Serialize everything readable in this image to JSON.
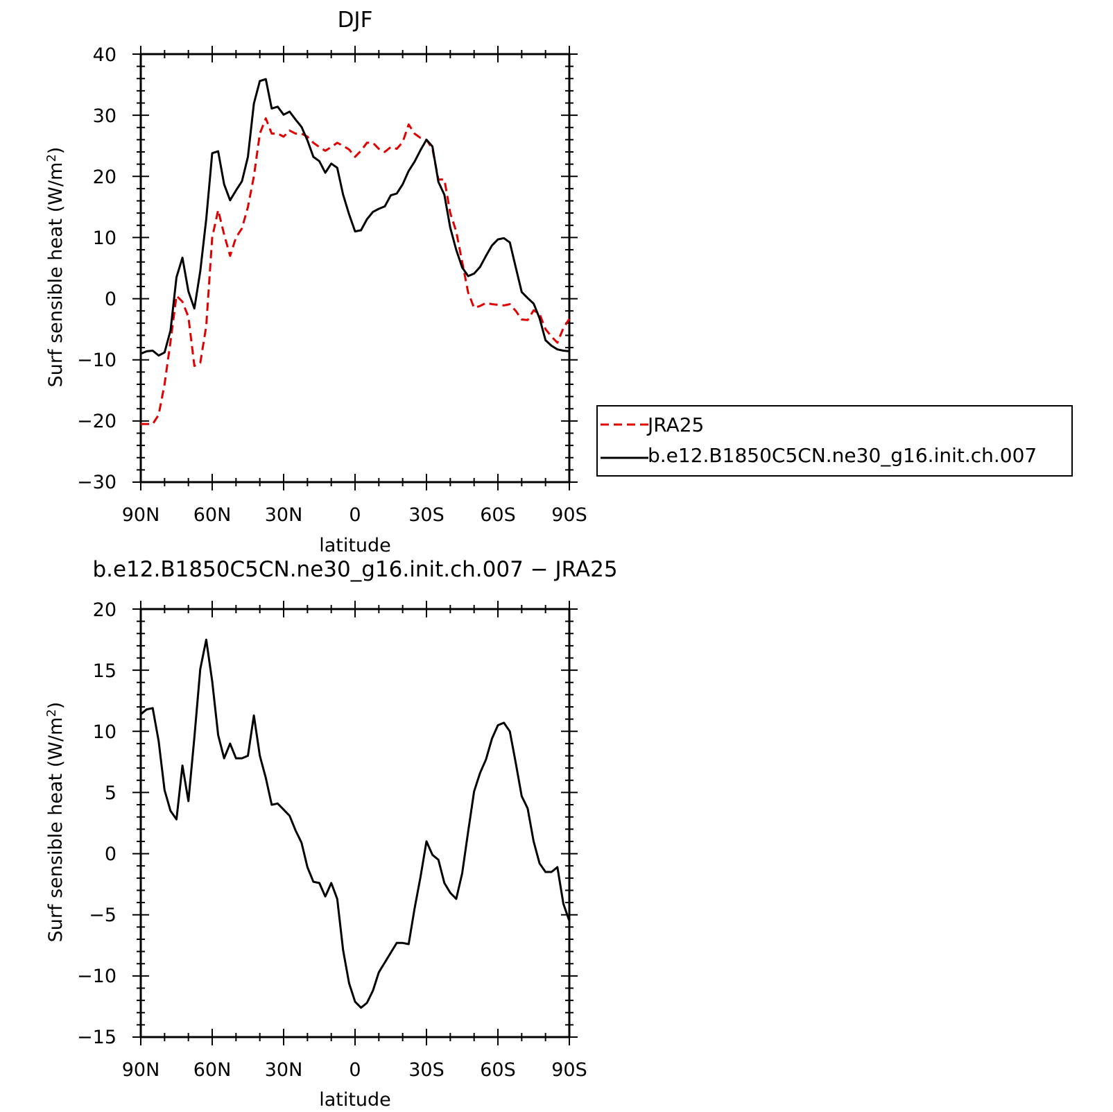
{
  "colors": {
    "model": "#000000",
    "obs": "#e00000",
    "background": "#ffffff"
  },
  "chart_data": [
    {
      "type": "line",
      "title": "DJF",
      "xlabel": "latitude",
      "ylabel": "Surf sensible heat (W/m",
      "ylabel_sup": "2",
      "ylabel_close": ")",
      "xlim": [
        90,
        -90
      ],
      "ylim": [
        -30,
        40
      ],
      "xticks": [
        90,
        60,
        30,
        0,
        -30,
        -60,
        -90
      ],
      "xticklabels": [
        "90N",
        "60N",
        "30N",
        "0",
        "30S",
        "60S",
        "90S"
      ],
      "yticks": [
        -30,
        -20,
        -10,
        0,
        10,
        20,
        30,
        40
      ],
      "yticklabels": [
        "−30",
        "−20",
        "−10",
        "0",
        "10",
        "20",
        "30",
        "40"
      ],
      "legend": {
        "placement": "right, outside plot",
        "entries": [
          "JRA25",
          "b.e12.B1850C5CN.ne30_g16.init.ch.007"
        ]
      },
      "grid": false,
      "series": [
        {
          "name": "JRA25",
          "style": "dashed",
          "color": "red",
          "x": [
            90,
            87.5,
            85,
            82.5,
            80,
            77.5,
            75,
            72.5,
            70,
            67.5,
            65,
            62.5,
            60,
            57.5,
            55,
            52.5,
            50,
            47.5,
            45,
            42.5,
            40,
            37.5,
            35,
            32.5,
            30,
            27.5,
            25,
            22.5,
            20,
            17.5,
            15,
            12.5,
            10,
            7.5,
            5,
            2.5,
            0,
            -2.5,
            -5,
            -7.5,
            -10,
            -12.5,
            -15,
            -17.5,
            -20,
            -22.5,
            -25,
            -27.5,
            -30,
            -32.5,
            -35,
            -37.5,
            -40,
            -42.5,
            -45,
            -47.5,
            -50,
            -52.5,
            -55,
            -57.5,
            -60,
            -62.5,
            -65,
            -67.5,
            -70,
            -72.5,
            -75,
            -77.5,
            -80,
            -82.5,
            -85,
            -87.5,
            -90
          ],
          "y": [
            -20.5,
            -20.5,
            -20.5,
            -19,
            -14,
            -7,
            0.5,
            -0.5,
            -3,
            -11,
            -10.5,
            -4.5,
            10,
            14.5,
            10.5,
            7,
            10,
            11.5,
            15,
            20,
            27,
            29.5,
            27,
            27,
            26.5,
            27.5,
            27,
            27,
            26.5,
            25.5,
            24.8,
            24.2,
            24.8,
            25.5,
            25,
            24.4,
            23.2,
            24.2,
            25.5,
            25.5,
            24.5,
            24,
            24.8,
            24.5,
            25.6,
            28.5,
            27,
            26.3,
            26,
            24.5,
            19.5,
            19.5,
            14,
            11,
            6,
            1,
            -1.5,
            -1.2,
            -0.7,
            -0.9,
            -1.0,
            -1.1,
            -0.9,
            -2.0,
            -3.4,
            -3.5,
            -1.9,
            -2.5,
            -5,
            -6.2,
            -7.2,
            -4.8,
            -3.3
          ]
        },
        {
          "name": "b.e12.B1850C5CN.ne30_g16.init.ch.007",
          "style": "solid",
          "color": "black",
          "x": [
            90,
            87.5,
            85,
            82.5,
            80,
            77.5,
            75,
            72.5,
            70,
            67.5,
            65,
            62.5,
            60,
            57.5,
            55,
            52.5,
            50,
            47.5,
            45,
            42.5,
            40,
            37.5,
            35,
            32.5,
            30,
            27.5,
            25,
            22.5,
            20,
            17.5,
            15,
            12.5,
            10,
            7.5,
            5,
            2.5,
            0,
            -2.5,
            -5,
            -7.5,
            -10,
            -12.5,
            -15,
            -17.5,
            -20,
            -22.5,
            -25,
            -27.5,
            -30,
            -32.5,
            -35,
            -37.5,
            -40,
            -42.5,
            -45,
            -47.5,
            -50,
            -52.5,
            -55,
            -57.5,
            -60,
            -62.5,
            -65,
            -67.5,
            -70,
            -72.5,
            -75,
            -77.5,
            -80,
            -82.5,
            -85,
            -87.5,
            -90
          ],
          "y": [
            -9,
            -8.6,
            -8.5,
            -9.3,
            -8.8,
            -5.2,
            3.5,
            6.7,
            1.2,
            -1.6,
            4.5,
            13,
            23.8,
            24.1,
            18.7,
            16.1,
            17.7,
            19.2,
            23.2,
            31.9,
            35.6,
            35.9,
            31.1,
            31.4,
            30.1,
            30.6,
            29.3,
            28.1,
            25.9,
            23.2,
            22.5,
            20.6,
            22.1,
            21.4,
            17,
            13.8,
            11,
            11.2,
            13,
            14.2,
            14.7,
            15.1,
            16.9,
            17.2,
            18.7,
            20.9,
            22.4,
            24.3,
            26,
            24.9,
            19.1,
            17,
            11.6,
            8,
            5.1,
            3.7,
            4.1,
            5.2,
            7,
            8.7,
            9.7,
            9.9,
            9.2,
            5.1,
            1.1,
            0.1,
            -0.8,
            -3.2,
            -6.8,
            -7.7,
            -8.3,
            -8.5,
            -8.6
          ]
        }
      ]
    },
    {
      "type": "line",
      "title": "b.e12.B1850C5CN.ne30_g16.init.ch.007 − JRA25",
      "xlabel": "latitude",
      "ylabel": "Surf sensible heat (W/m",
      "ylabel_sup": "2",
      "ylabel_close": ")",
      "xlim": [
        90,
        -90
      ],
      "ylim": [
        -15,
        20
      ],
      "xticks": [
        90,
        60,
        30,
        0,
        -30,
        -60,
        -90
      ],
      "xticklabels": [
        "90N",
        "60N",
        "30N",
        "0",
        "30S",
        "60S",
        "90S"
      ],
      "yticks": [
        -15,
        -10,
        -5,
        0,
        5,
        10,
        15,
        20
      ],
      "yticklabels": [
        "−15",
        "−10",
        "−5",
        "0",
        "5",
        "10",
        "15",
        "20"
      ],
      "grid": false,
      "series": [
        {
          "style": "solid",
          "color": "black",
          "x": [
            90,
            87.5,
            85,
            82.5,
            80,
            77.5,
            75,
            72.5,
            70,
            67.5,
            65,
            62.5,
            60,
            57.5,
            55,
            52.5,
            50,
            47.5,
            45,
            42.5,
            40,
            37.5,
            35,
            32.5,
            30,
            27.5,
            25,
            22.5,
            20,
            17.5,
            15,
            12.5,
            10,
            7.5,
            5,
            2.5,
            0,
            -2.5,
            -5,
            -7.5,
            -10,
            -12.5,
            -15,
            -17.5,
            -20,
            -22.5,
            -25,
            -27.5,
            -30,
            -32.5,
            -35,
            -37.5,
            -40,
            -42.5,
            -45,
            -47.5,
            -50,
            -52.5,
            -55,
            -57.5,
            -60,
            -62.5,
            -65,
            -67.5,
            -70,
            -72.5,
            -75,
            -77.5,
            -80,
            -82.5,
            -85,
            -87.5,
            -90
          ],
          "y": [
            11.4,
            11.8,
            11.9,
            9.2,
            5.2,
            3.5,
            2.8,
            7.2,
            4.3,
            9.5,
            15.1,
            17.5,
            14.1,
            9.7,
            7.8,
            9.0,
            7.8,
            7.8,
            8.0,
            11.3,
            8.0,
            6.2,
            4.0,
            4.1,
            3.6,
            3.1,
            1.9,
            0.9,
            -1.1,
            -2.3,
            -2.4,
            -3.5,
            -2.4,
            -3.7,
            -7.9,
            -10.6,
            -12.1,
            -12.6,
            -12.2,
            -11.2,
            -9.7,
            -8.9,
            -8.1,
            -7.3,
            -7.3,
            -7.4,
            -4.5,
            -1.9,
            1.0,
            -0.1,
            -0.5,
            -2.4,
            -3.2,
            -3.7,
            -1.6,
            1.8,
            5.1,
            6.6,
            7.7,
            9.4,
            10.5,
            10.7,
            10.0,
            7.4,
            4.7,
            3.7,
            1.0,
            -0.8,
            -1.5,
            -1.5,
            -1.1,
            -4.1,
            -5.5
          ]
        }
      ]
    }
  ]
}
